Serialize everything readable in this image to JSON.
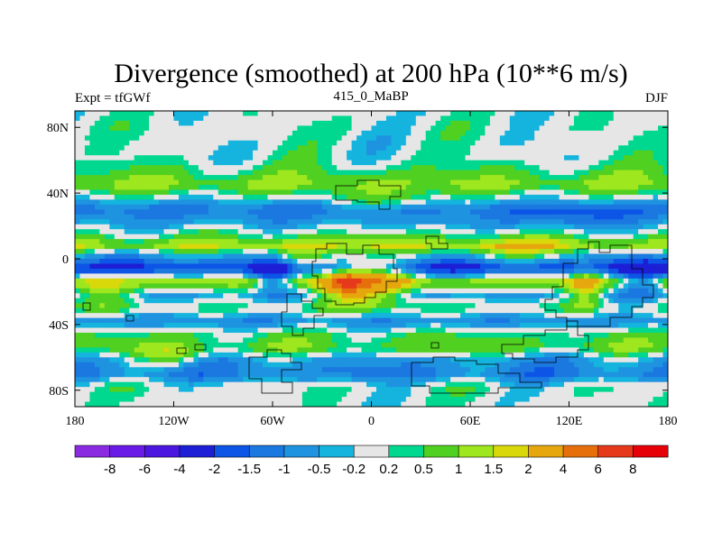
{
  "chart_data": {
    "type": "heatmap",
    "title": "Divergence (smoothed) at 200 hPa (10**6 m/s)",
    "left_label": "Expt = tfGWf",
    "center_label": "415_0_MaBP",
    "right_label": "DJF",
    "x_ticks": [
      {
        "value": -180,
        "label": "180"
      },
      {
        "value": -120,
        "label": "120W"
      },
      {
        "value": -60,
        "label": "60W"
      },
      {
        "value": 0,
        "label": "0"
      },
      {
        "value": 60,
        "label": "60E"
      },
      {
        "value": 120,
        "label": "120E"
      },
      {
        "value": 180,
        "label": "180"
      }
    ],
    "y_ticks": [
      {
        "value": 80,
        "label": "80N"
      },
      {
        "value": 40,
        "label": "40N"
      },
      {
        "value": 0,
        "label": "0"
      },
      {
        "value": -40,
        "label": "40S"
      },
      {
        "value": -80,
        "label": "80S"
      }
    ],
    "xlim": [
      -180,
      180
    ],
    "ylim": [
      -90,
      90
    ],
    "colorbar": {
      "levels": [
        "-8",
        "-6",
        "-4",
        "-2",
        "-1.5",
        "-1",
        "-0.5",
        "-0.2",
        "0.2",
        "0.5",
        "1",
        "1.5",
        "2",
        "4",
        "6",
        "8"
      ],
      "colors": [
        "#8a2be2",
        "#6a1ae6",
        "#4b16df",
        "#1c1fd6",
        "#0d55e6",
        "#1a78e0",
        "#1e93e0",
        "#14b4de",
        "#e6e6e6",
        "#00d890",
        "#50d020",
        "#9ee61e",
        "#d8d80a",
        "#e6a60e",
        "#e66f0c",
        "#e6381a",
        "#e60008"
      ]
    },
    "bands": [
      {
        "lat": 90,
        "value": 0.0
      },
      {
        "lat": 80,
        "value": 0.1
      },
      {
        "lat": 70,
        "value": 0.0
      },
      {
        "lat": 60,
        "value": 0.1
      },
      {
        "lat": 52,
        "value": 0.6
      },
      {
        "lat": 45,
        "value": 1.1
      },
      {
        "lat": 38,
        "value": 0.1
      },
      {
        "lat": 30,
        "value": -1.3
      },
      {
        "lat": 22,
        "value": -0.6
      },
      {
        "lat": 14,
        "value": 0.4
      },
      {
        "lat": 8,
        "value": 1.4
      },
      {
        "lat": 2,
        "value": -0.5
      },
      {
        "lat": -6,
        "value": -2.2
      },
      {
        "lat": -14,
        "value": 1.3
      },
      {
        "lat": -22,
        "value": -0.6
      },
      {
        "lat": -30,
        "value": 0.3
      },
      {
        "lat": -38,
        "value": -0.9
      },
      {
        "lat": -46,
        "value": 0.4
      },
      {
        "lat": -54,
        "value": 0.8
      },
      {
        "lat": -62,
        "value": -0.7
      },
      {
        "lat": -70,
        "value": -1.1
      },
      {
        "lat": -78,
        "value": 0.1
      },
      {
        "lat": -90,
        "value": 0.0
      }
    ],
    "blobs": [
      {
        "lon": -8,
        "lat": -15,
        "rlon": 28,
        "rlat": 13,
        "amp": 3.0
      },
      {
        "lon": -15,
        "lat": -15,
        "rlon": 9,
        "rlat": 5,
        "amp": 3.5
      },
      {
        "lon": -40,
        "lat": 0,
        "rlon": 18,
        "rlat": 9,
        "amp": 1.5
      },
      {
        "lon": 80,
        "lat": 5,
        "rlon": 32,
        "rlat": 7,
        "amp": 1.1
      },
      {
        "lon": 130,
        "lat": -18,
        "rlon": 10,
        "rlat": 14,
        "amp": 1.6
      },
      {
        "lon": -165,
        "lat": -20,
        "rlon": 20,
        "rlat": 10,
        "amp": 1.4
      },
      {
        "lon": 10,
        "lat": 35,
        "rlon": 28,
        "rlat": 7,
        "amp": 1.0
      },
      {
        "lon": -60,
        "lat": -10,
        "rlon": 12,
        "rlat": 10,
        "amp": -2.0
      },
      {
        "lon": 165,
        "lat": -12,
        "rlon": 15,
        "rlat": 12,
        "amp": -1.4
      },
      {
        "lon": -120,
        "lat": -60,
        "rlon": 20,
        "rlat": 6,
        "amp": 1.2
      },
      {
        "lon": 120,
        "lat": 25,
        "rlon": 30,
        "rlat": 8,
        "amp": -0.8
      }
    ]
  }
}
